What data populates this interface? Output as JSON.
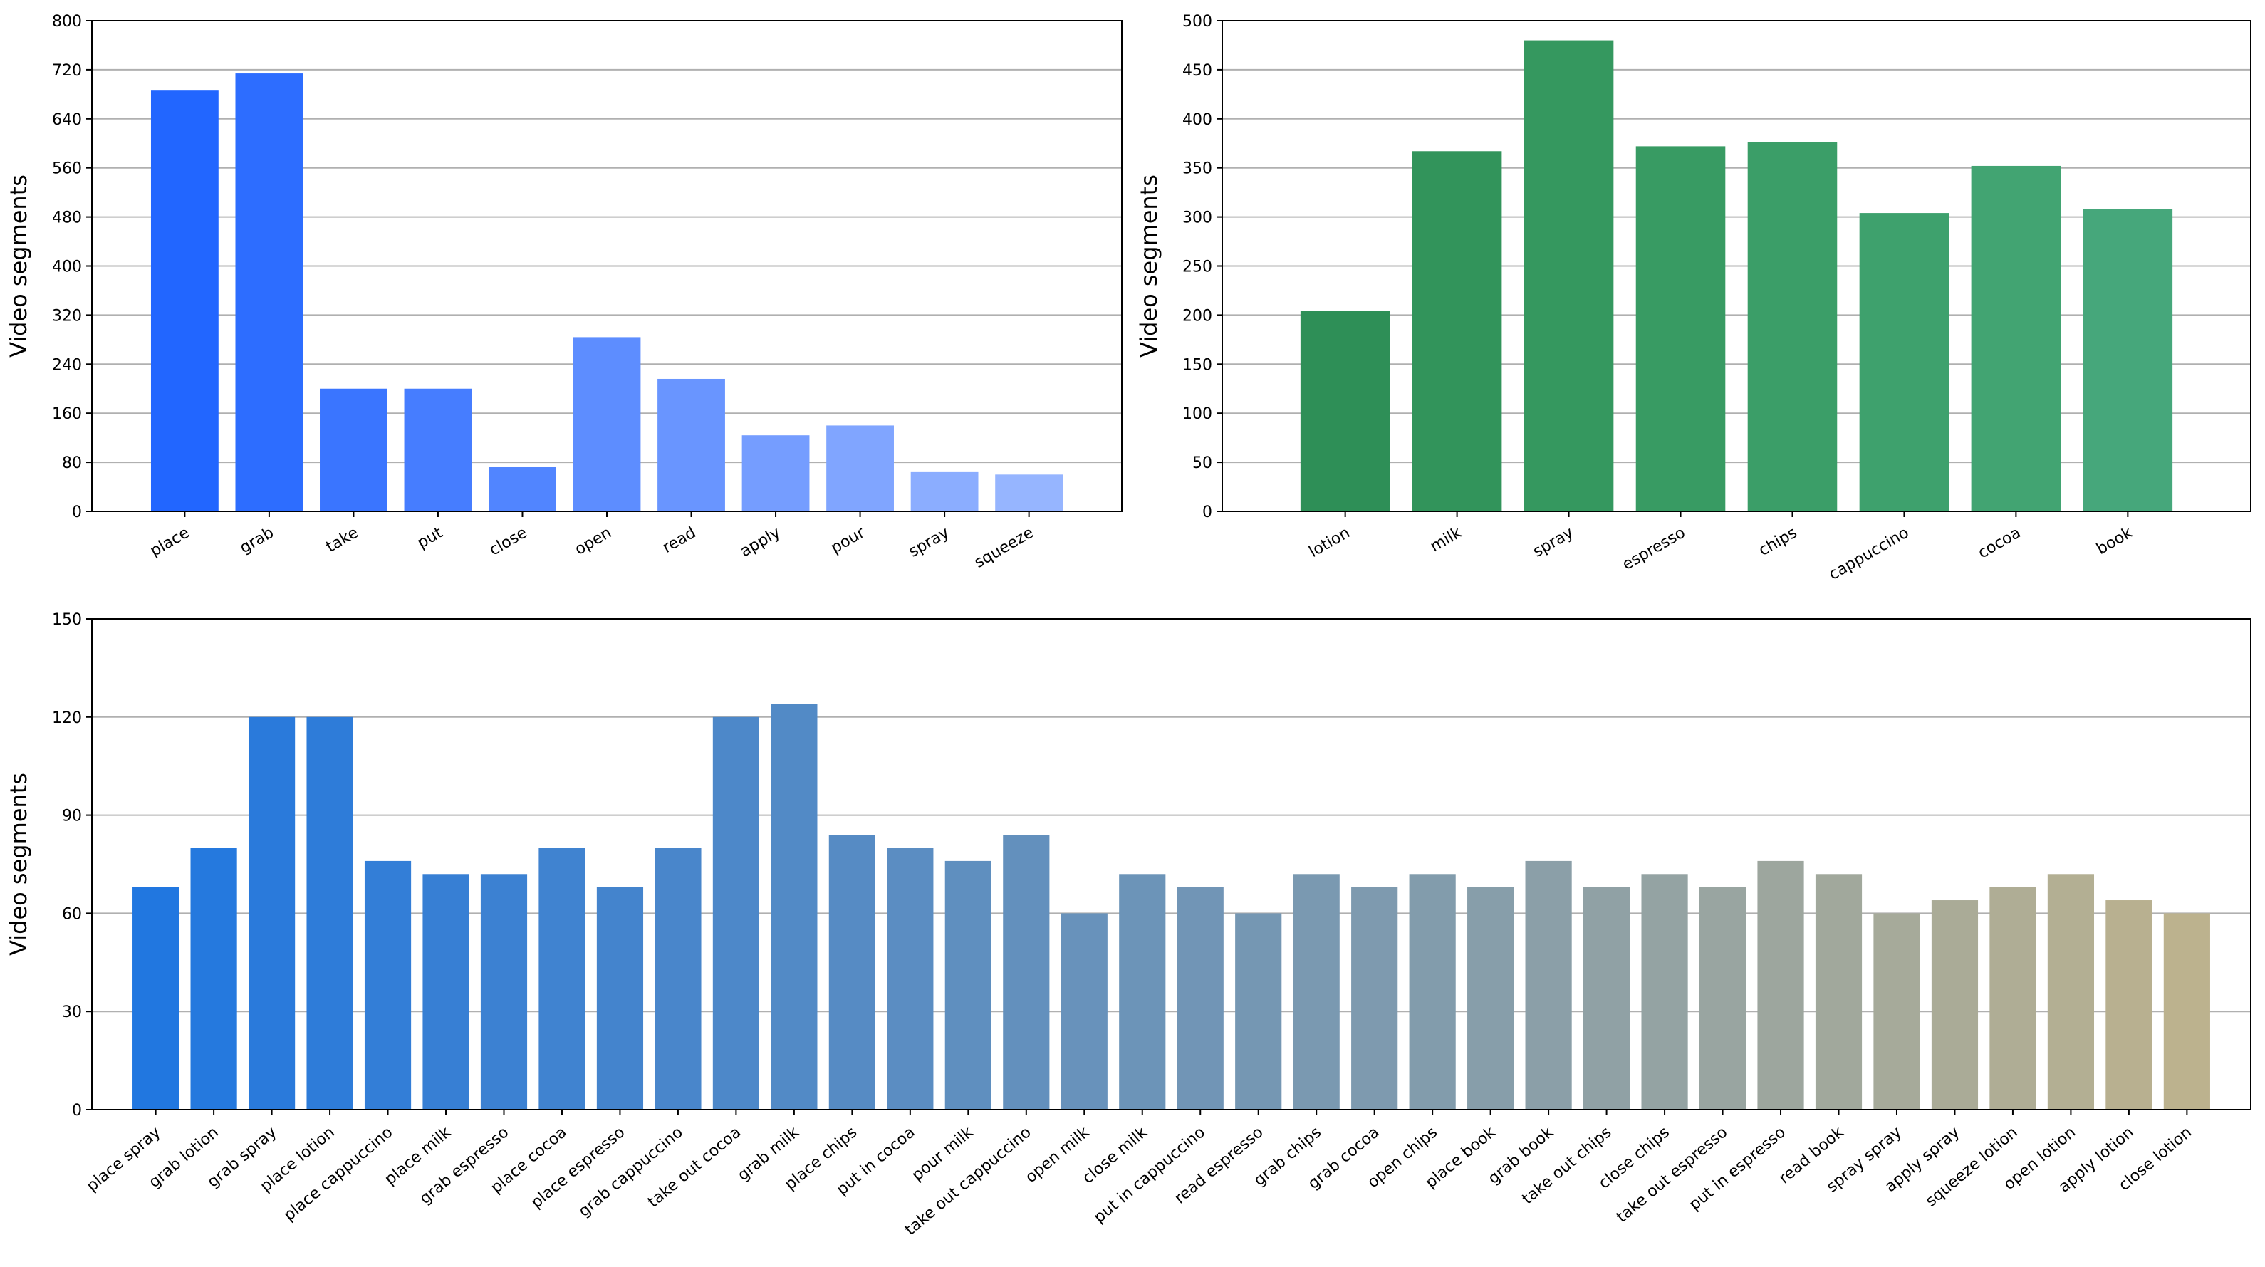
{
  "chart_data": [
    {
      "type": "bar",
      "categories": [
        "place",
        "grab",
        "take",
        "put",
        "close",
        "open",
        "read",
        "apply",
        "pour",
        "spray",
        "squeeze"
      ],
      "values": [
        686,
        714,
        200,
        200,
        72,
        284,
        216,
        124,
        140,
        64,
        60
      ],
      "ylabel": "Video segments",
      "xlabel": "",
      "ylim": [
        0,
        800
      ],
      "yticks": [
        0,
        80,
        160,
        240,
        320,
        400,
        480,
        560,
        640,
        720,
        800
      ],
      "colors": [
        "#2266ff",
        "#2d6dff",
        "#3a75ff",
        "#467dff",
        "#5185ff",
        "#5d8dff",
        "#6995ff",
        "#759dff",
        "#80a5ff",
        "#8badff",
        "#96b5ff"
      ],
      "grid": "horizontal"
    },
    {
      "type": "bar",
      "categories": [
        "lotion",
        "milk",
        "spray",
        "espresso",
        "chips",
        "cappuccino",
        "cocoa",
        "book"
      ],
      "values": [
        204,
        367,
        480,
        372,
        376,
        304,
        352,
        308
      ],
      "ylabel": "Video segments",
      "xlabel": "",
      "ylim": [
        0,
        500
      ],
      "yticks": [
        0,
        50,
        100,
        150,
        200,
        250,
        300,
        350,
        400,
        450,
        500
      ],
      "colors": [
        "#2e8f57",
        "#32945b",
        "#35985f",
        "#389b63",
        "#3b9e68",
        "#3ea16d",
        "#42a472",
        "#46a77b"
      ],
      "grid": "horizontal"
    },
    {
      "type": "bar",
      "categories": [
        "place spray",
        "grab lotion",
        "grab spray",
        "place lotion",
        "place cappuccino",
        "place milk",
        "grab espresso",
        "place cocoa",
        "place espresso",
        "grab cappuccino",
        "take out cocoa",
        "grab milk",
        "place chips",
        "put in cocoa",
        "pour milk",
        "take out cappuccino",
        "open milk",
        "close milk",
        "put in cappuccino",
        "read espresso",
        "grab chips",
        "grab cocoa",
        "open chips",
        "place book",
        "grab book",
        "take out chips",
        "close chips",
        "take out espresso",
        "put in espresso",
        "read book",
        "spray spray",
        "apply spray",
        "squeeze lotion",
        "open lotion",
        "apply lotion",
        "close lotion"
      ],
      "values": [
        68,
        80,
        120,
        120,
        76,
        72,
        72,
        80,
        68,
        80,
        120,
        124,
        84,
        80,
        76,
        84,
        60,
        72,
        68,
        60,
        72,
        68,
        72,
        68,
        76,
        68,
        72,
        68,
        76,
        72,
        60,
        64,
        68,
        72,
        64,
        60
      ],
      "ylabel": "Video segments",
      "xlabel": "",
      "ylim": [
        0,
        150
      ],
      "yticks": [
        0,
        30,
        60,
        90,
        120,
        150
      ],
      "color_start": "#2177e0",
      "color_end": "#bcb28e",
      "grid": "horizontal"
    }
  ]
}
